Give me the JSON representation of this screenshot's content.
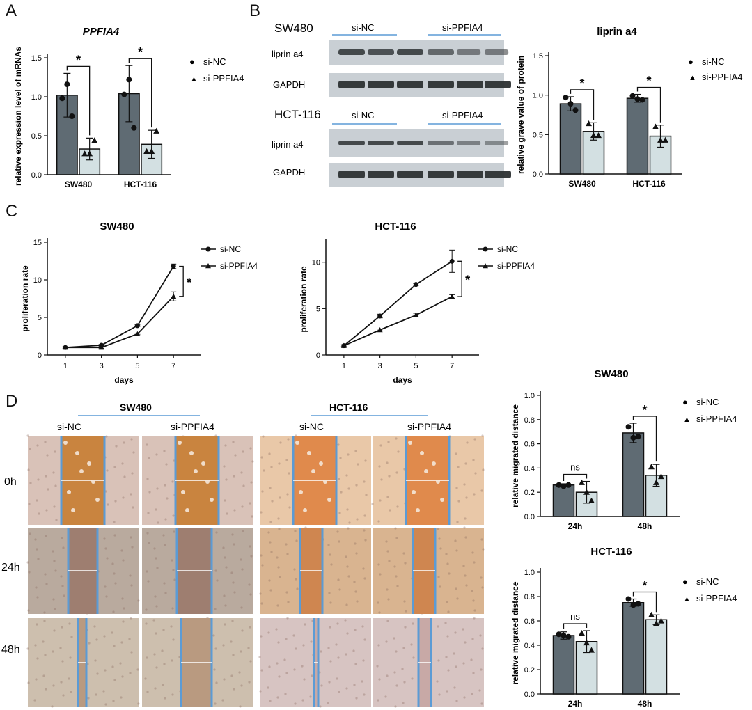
{
  "colors": {
    "dark_bar": "#5f6b73",
    "light_bar": "#d3e0e2",
    "blot_bg": "#c9cfd4",
    "band": "#2d3133",
    "accent_line": "#5b9bd5"
  },
  "panel_letters": {
    "a": "A",
    "b": "B",
    "c": "C",
    "d": "D"
  },
  "legend": {
    "marker_nc": "●",
    "marker_si": "▲",
    "si_nc": "si-NC",
    "si_ppfia4": "si-PPFIA4"
  },
  "sig": {
    "star": "*",
    "ns": "ns"
  },
  "panel_b": {
    "sw480_label": "SW480",
    "hct116_label": "HCT-116",
    "group_nc": "si-NC",
    "group_si": "si-PPFIA4",
    "liprin_label": "liprin  a4",
    "gapdh_label": "GAPDH"
  },
  "panel_d": {
    "sw480_title": "SW480",
    "hct116_title": "HCT-116",
    "si_nc": "si-NC",
    "si_ppfia4": "si-PPFIA4",
    "rows": [
      "0h",
      "24h",
      "48h"
    ]
  },
  "chart_data": [
    {
      "id": "A",
      "type": "bar",
      "title": "PPFIA4",
      "ylabel": "relative expression level of mRNAs",
      "categories": [
        "SW480",
        "HCT-116"
      ],
      "ylim": [
        0,
        1.5
      ],
      "yticks": [
        0.0,
        0.5,
        1.0,
        1.5
      ],
      "series": [
        {
          "name": "si-NC",
          "values": [
            1.02,
            1.04
          ],
          "errors": [
            0.28,
            0.36
          ],
          "points": [
            [
              0.98,
              1.16,
              0.75
            ],
            [
              1.03,
              1.22,
              0.6
            ]
          ]
        },
        {
          "name": "si-PPFIA4",
          "values": [
            0.33,
            0.39
          ],
          "errors": [
            0.14,
            0.18
          ],
          "points": [
            [
              0.27,
              0.27,
              0.44
            ],
            [
              0.3,
              0.3,
              0.56
            ]
          ]
        }
      ],
      "significance": [
        "*",
        "*"
      ]
    },
    {
      "id": "B",
      "type": "bar",
      "title": "liprin a4",
      "ylabel": "relative grave value of protein",
      "categories": [
        "SW480",
        "HCT-116"
      ],
      "ylim": [
        0,
        1.5
      ],
      "yticks": [
        0.0,
        0.5,
        1.0,
        1.5
      ],
      "series": [
        {
          "name": "si-NC",
          "values": [
            0.89,
            0.96
          ],
          "errors": [
            0.09,
            0.05
          ],
          "points": [
            [
              0.97,
              0.89,
              0.81
            ],
            [
              0.99,
              0.95,
              0.94
            ]
          ]
        },
        {
          "name": "si-PPFIA4",
          "values": [
            0.54,
            0.48
          ],
          "errors": [
            0.11,
            0.14
          ],
          "points": [
            [
              0.64,
              0.49,
              0.49
            ],
            [
              0.6,
              0.43,
              0.43
            ]
          ]
        }
      ],
      "significance": [
        "*",
        "*"
      ]
    },
    {
      "id": "C1",
      "type": "line",
      "title": "SW480",
      "xlabel": "days",
      "ylabel": "proliferation rate",
      "x": [
        1,
        3,
        5,
        7
      ],
      "ylim": [
        0,
        15
      ],
      "yticks": [
        0,
        5,
        10,
        15
      ],
      "series": [
        {
          "name": "si-NC",
          "marker": "circle",
          "values": [
            1.0,
            1.3,
            3.9,
            11.8
          ],
          "errors": [
            0.1,
            0.1,
            0.1,
            0.3
          ]
        },
        {
          "name": "si-PPFIA4",
          "marker": "triangle",
          "values": [
            1.0,
            1.0,
            2.8,
            7.8
          ],
          "errors": [
            0.1,
            0.1,
            0.1,
            0.6
          ]
        }
      ],
      "significance": "*"
    },
    {
      "id": "C2",
      "type": "line",
      "title": "HCT-116",
      "xlabel": "days",
      "ylabel": "proliferation rate",
      "x": [
        1,
        3,
        5,
        7
      ],
      "ylim": [
        0,
        12
      ],
      "yticks": [
        0,
        5,
        10
      ],
      "series": [
        {
          "name": "si-NC",
          "marker": "circle",
          "values": [
            1.0,
            4.2,
            7.6,
            10.1
          ],
          "errors": [
            0.1,
            0.2,
            0.1,
            1.2
          ]
        },
        {
          "name": "si-PPFIA4",
          "marker": "triangle",
          "values": [
            1.0,
            2.7,
            4.3,
            6.3
          ],
          "errors": [
            0.1,
            0.1,
            0.2,
            0.2
          ]
        }
      ],
      "significance": "*"
    },
    {
      "id": "D1",
      "type": "bar",
      "title": "SW480",
      "ylabel": "relative migrated distance",
      "categories": [
        "24h",
        "48h"
      ],
      "ylim": [
        0,
        1.0
      ],
      "yticks": [
        0.0,
        0.2,
        0.4,
        0.6,
        0.8,
        1.0
      ],
      "series": [
        {
          "name": "si-NC",
          "values": [
            0.26,
            0.69
          ],
          "errors": [
            0.01,
            0.08
          ],
          "points": [
            [
              0.26,
              0.25,
              0.26
            ],
            [
              0.74,
              0.65,
              0.66
            ]
          ]
        },
        {
          "name": "si-PPFIA4",
          "values": [
            0.2,
            0.34
          ],
          "errors": [
            0.09,
            0.09
          ],
          "points": [
            [
              0.28,
              0.2,
              0.13
            ],
            [
              0.41,
              0.28,
              0.33
            ]
          ]
        }
      ],
      "significance": [
        "ns",
        "*"
      ]
    },
    {
      "id": "D2",
      "type": "bar",
      "title": "HCT-116",
      "ylabel": "relative migrated distance",
      "categories": [
        "24h",
        "48h"
      ],
      "ylim": [
        0,
        1.0
      ],
      "yticks": [
        0.0,
        0.2,
        0.4,
        0.6,
        0.8,
        1.0
      ],
      "series": [
        {
          "name": "si-NC",
          "values": [
            0.48,
            0.75
          ],
          "errors": [
            0.03,
            0.03
          ],
          "points": [
            [
              0.49,
              0.48,
              0.47
            ],
            [
              0.78,
              0.73,
              0.74
            ]
          ]
        },
        {
          "name": "si-PPFIA4",
          "values": [
            0.43,
            0.61
          ],
          "errors": [
            0.09,
            0.04
          ],
          "points": [
            [
              0.5,
              0.42,
              0.36
            ],
            [
              0.65,
              0.58,
              0.6
            ]
          ]
        }
      ],
      "significance": [
        "ns",
        "*"
      ]
    }
  ]
}
